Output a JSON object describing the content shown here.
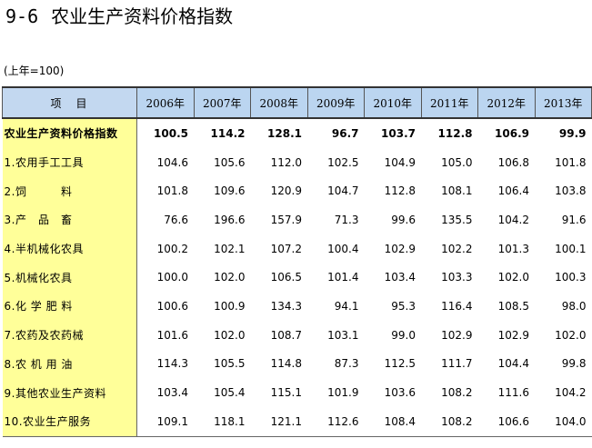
{
  "title": {
    "number": "9-6",
    "text": "农业生产资料价格指数"
  },
  "unit_note": "(上年=100)",
  "table": {
    "header_item": "项　目",
    "years": [
      "2006年",
      "2007年",
      "2008年",
      "2009年",
      "2010年",
      "2011年",
      "2012年",
      "2013年"
    ],
    "rows": [
      {
        "label": "农业生产资料价格指数",
        "values": [
          "100.5",
          "114.2",
          "128.1",
          "96.7",
          "103.7",
          "112.8",
          "106.9",
          "99.9"
        ]
      },
      {
        "label": "1.农用手工工具",
        "values": [
          "104.6",
          "105.6",
          "112.0",
          "102.5",
          "104.9",
          "105.0",
          "106.8",
          "101.8"
        ]
      },
      {
        "label": "2.饲　　　料",
        "values": [
          "101.8",
          "109.6",
          "120.9",
          "104.7",
          "112.8",
          "108.1",
          "106.4",
          "103.8"
        ]
      },
      {
        "label": "3.产　品　畜",
        "values": [
          "76.6",
          "196.6",
          "157.9",
          "71.3",
          "99.6",
          "135.5",
          "104.2",
          "91.6"
        ]
      },
      {
        "label": "4.半机械化农具",
        "values": [
          "100.2",
          "102.1",
          "107.2",
          "100.4",
          "102.9",
          "102.2",
          "101.3",
          "100.1"
        ]
      },
      {
        "label": "5.机械化农具",
        "values": [
          "100.0",
          "102.0",
          "106.5",
          "101.4",
          "103.4",
          "103.3",
          "102.0",
          "100.3"
        ]
      },
      {
        "label": "6.化 学 肥 料",
        "values": [
          "100.6",
          "100.9",
          "134.3",
          "94.1",
          "95.3",
          "116.4",
          "108.5",
          "98.0"
        ]
      },
      {
        "label": "7.农药及农药械",
        "values": [
          "101.6",
          "102.0",
          "108.7",
          "103.1",
          "99.0",
          "102.9",
          "102.9",
          "102.0"
        ]
      },
      {
        "label": "8.农 机 用 油",
        "values": [
          "114.3",
          "105.5",
          "114.8",
          "87.3",
          "112.5",
          "111.7",
          "104.4",
          "99.8"
        ]
      },
      {
        "label": "9.其他农业生产资料",
        "values": [
          "103.4",
          "105.4",
          "115.1",
          "101.9",
          "103.6",
          "108.2",
          "111.6",
          "104.2"
        ]
      },
      {
        "label": "10.农业生产服务",
        "values": [
          "109.1",
          "118.1",
          "121.1",
          "112.6",
          "108.4",
          "108.2",
          "106.6",
          "104.0"
        ]
      }
    ]
  }
}
